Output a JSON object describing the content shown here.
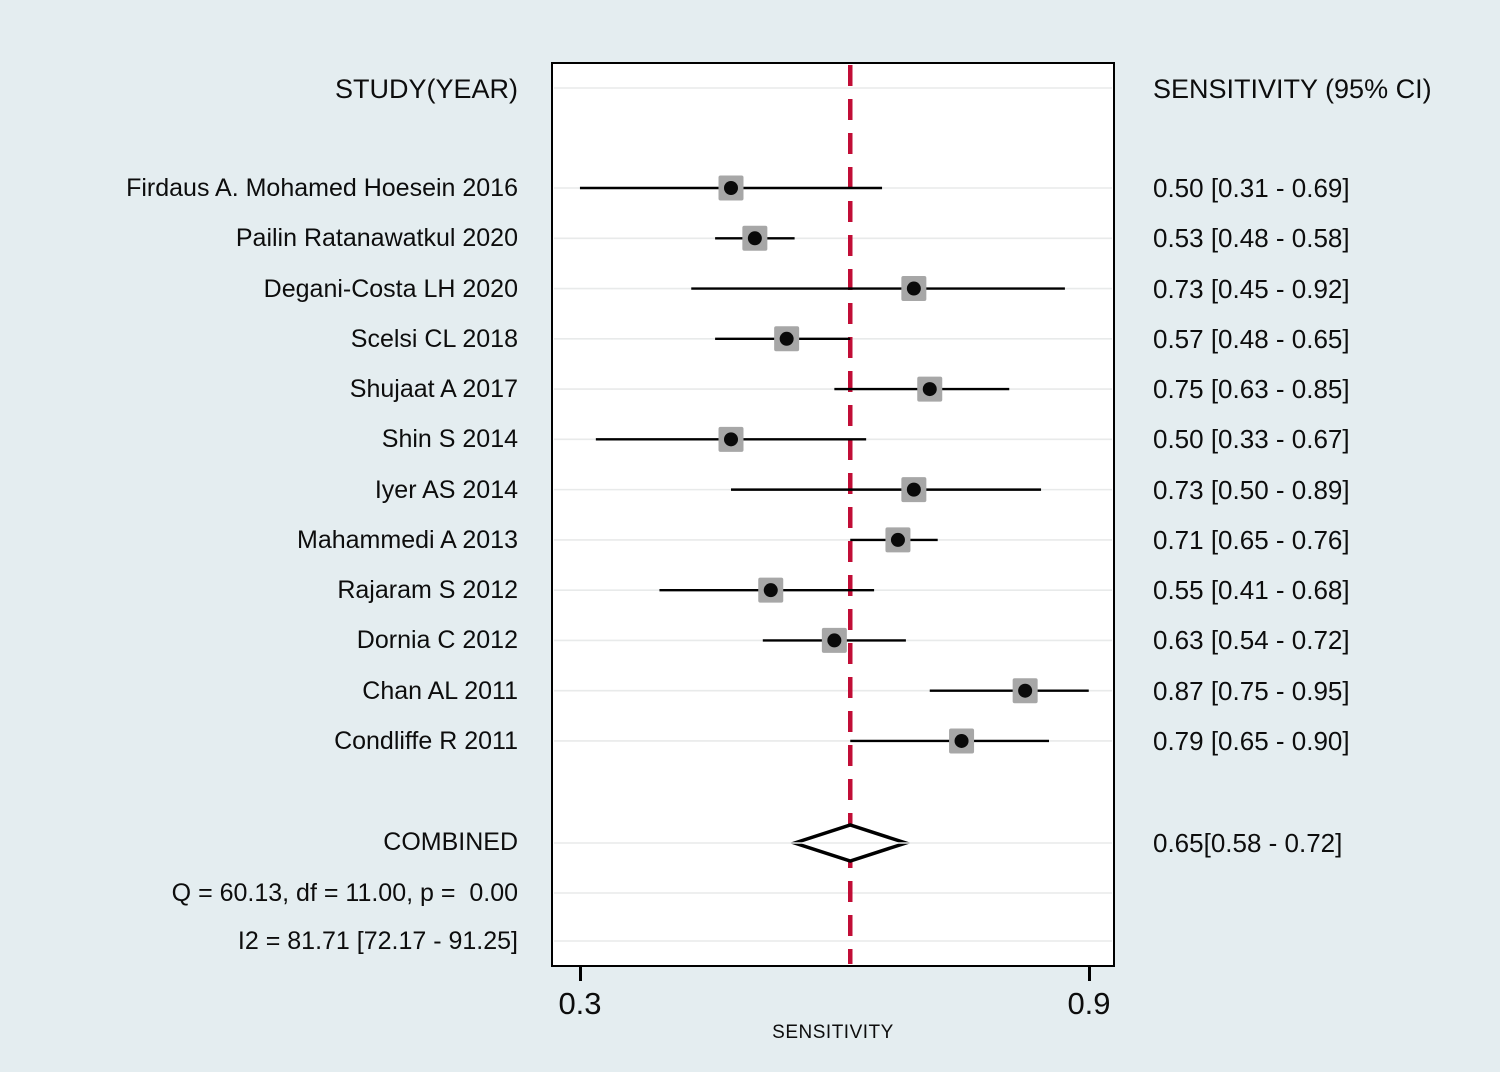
{
  "figure": {
    "left_header": "STUDY(YEAR)",
    "right_header": "SENSITIVITY (95% CI)",
    "xlabel": "SENSITIVITY",
    "combined_label": "COMBINED",
    "combined_value": "0.65[0.58 - 0.72]",
    "q_stats": "Q = 60.13, df = 11.00, p =  0.00",
    "i2_stats": "I2 = 81.71 [72.17 - 91.25]"
  },
  "colors": {
    "background": "#e4edf0",
    "plot_background": "#ffffff",
    "gridline": "#e8eaea",
    "marker_square": "#a7a7a7",
    "marker_dot": "#0a0a0a",
    "ci_line": "#000000",
    "reference_line": "#c10d36",
    "diamond_outline": "#000000"
  },
  "chart_data": {
    "type": "forest",
    "title": "",
    "xlabel": "SENSITIVITY",
    "xlim": [
      0.3,
      0.9
    ],
    "x_ticks": [
      {
        "value": 0.3,
        "label": "0.3"
      },
      {
        "value": 0.9,
        "label": "0.9"
      }
    ],
    "reference_line": 0.65,
    "grid": "per-row-horizontal",
    "legend": "none",
    "studies": [
      {
        "label": "Firdaus A. Mohamed Hoesein 2016",
        "estimate": 0.5,
        "ci_low": 0.31,
        "ci_high": 0.69,
        "display": "0.50 [0.31 - 0.69]"
      },
      {
        "label": "Pailin Ratanawatkul 2020",
        "estimate": 0.53,
        "ci_low": 0.48,
        "ci_high": 0.58,
        "display": "0.53 [0.48 - 0.58]"
      },
      {
        "label": "Degani-Costa LH 2020",
        "estimate": 0.73,
        "ci_low": 0.45,
        "ci_high": 0.92,
        "display": "0.73 [0.45 - 0.92]"
      },
      {
        "label": "Scelsi CL 2018",
        "estimate": 0.57,
        "ci_low": 0.48,
        "ci_high": 0.65,
        "display": "0.57 [0.48 - 0.65]"
      },
      {
        "label": "Shujaat A 2017",
        "estimate": 0.75,
        "ci_low": 0.63,
        "ci_high": 0.85,
        "display": "0.75 [0.63 - 0.85]"
      },
      {
        "label": "Shin S 2014",
        "estimate": 0.5,
        "ci_low": 0.33,
        "ci_high": 0.67,
        "display": "0.50 [0.33 - 0.67]"
      },
      {
        "label": "Iyer AS 2014",
        "estimate": 0.73,
        "ci_low": 0.5,
        "ci_high": 0.89,
        "display": "0.73 [0.50 - 0.89]"
      },
      {
        "label": "Mahammedi A 2013",
        "estimate": 0.71,
        "ci_low": 0.65,
        "ci_high": 0.76,
        "display": "0.71 [0.65 - 0.76]"
      },
      {
        "label": "Rajaram S 2012",
        "estimate": 0.55,
        "ci_low": 0.41,
        "ci_high": 0.68,
        "display": "0.55 [0.41 - 0.68]"
      },
      {
        "label": "Dornia C 2012",
        "estimate": 0.63,
        "ci_low": 0.54,
        "ci_high": 0.72,
        "display": "0.63 [0.54 - 0.72]"
      },
      {
        "label": "Chan AL 2011",
        "estimate": 0.87,
        "ci_low": 0.75,
        "ci_high": 0.95,
        "display": "0.87 [0.75 - 0.95]"
      },
      {
        "label": "Condliffe R 2011",
        "estimate": 0.79,
        "ci_low": 0.65,
        "ci_high": 0.9,
        "display": "0.79 [0.65 - 0.90]"
      }
    ],
    "combined": {
      "label": "COMBINED",
      "estimate": 0.65,
      "ci_low": 0.58,
      "ci_high": 0.72,
      "display": "0.65[0.58 - 0.72]"
    },
    "heterogeneity": {
      "Q": 60.13,
      "df": 11.0,
      "p": 0.0,
      "I2": 81.71,
      "I2_ci_low": 72.17,
      "I2_ci_high": 91.25
    }
  }
}
